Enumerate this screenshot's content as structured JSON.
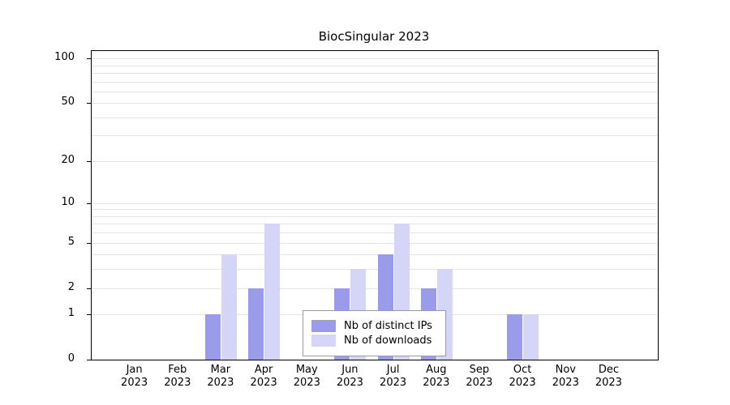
{
  "chart_data": {
    "type": "bar",
    "title": "BiocSingular 2023",
    "categories": [
      {
        "month": "Jan",
        "year": "2023"
      },
      {
        "month": "Feb",
        "year": "2023"
      },
      {
        "month": "Mar",
        "year": "2023"
      },
      {
        "month": "Apr",
        "year": "2023"
      },
      {
        "month": "May",
        "year": "2023"
      },
      {
        "month": "Jun",
        "year": "2023"
      },
      {
        "month": "Jul",
        "year": "2023"
      },
      {
        "month": "Aug",
        "year": "2023"
      },
      {
        "month": "Sep",
        "year": "2023"
      },
      {
        "month": "Oct",
        "year": "2023"
      },
      {
        "month": "Nov",
        "year": "2023"
      },
      {
        "month": "Dec",
        "year": "2023"
      }
    ],
    "series": [
      {
        "name": "Nb of distinct IPs",
        "color": "#9b9bec",
        "values": [
          0,
          0,
          1,
          2,
          0,
          2,
          4,
          2,
          0,
          1,
          0,
          0
        ]
      },
      {
        "name": "Nb of downloads",
        "color": "#d5d5f8",
        "values": [
          0,
          0,
          4,
          7,
          0,
          3,
          7,
          3,
          0,
          1,
          0,
          0
        ]
      }
    ],
    "yscale": "log10(1+x)",
    "yticks": [
      0,
      1,
      2,
      5,
      10,
      20,
      50,
      100
    ],
    "gridlines": [
      1,
      2,
      3,
      4,
      5,
      6,
      7,
      8,
      9,
      10,
      20,
      30,
      40,
      50,
      60,
      70,
      80,
      90,
      100
    ],
    "ylim": [
      0,
      112
    ],
    "xlabel": "",
    "ylabel": "",
    "grid": true,
    "legend_position": "inside-bottom-center"
  }
}
